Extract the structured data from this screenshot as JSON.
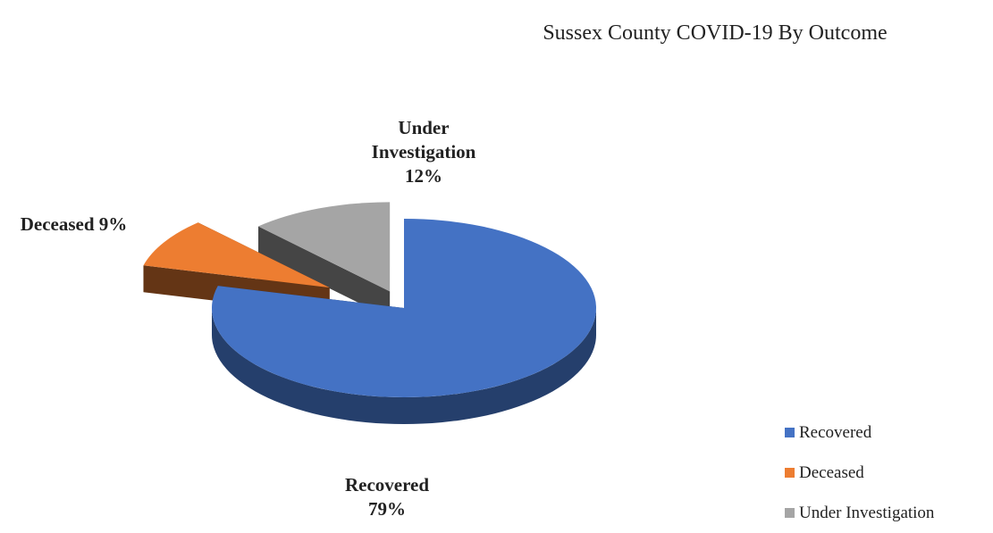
{
  "chart_data": {
    "type": "pie",
    "title": "Sussex County COVID-19 By Outcome",
    "categories": [
      "Recovered",
      "Deceased",
      "Under Investigation"
    ],
    "values": [
      79,
      9,
      12
    ],
    "value_labels": [
      "79%",
      "9%",
      "12%"
    ],
    "colors": [
      "#4472c4",
      "#ed7d31",
      "#a5a5a5"
    ],
    "legend": "right"
  }
}
